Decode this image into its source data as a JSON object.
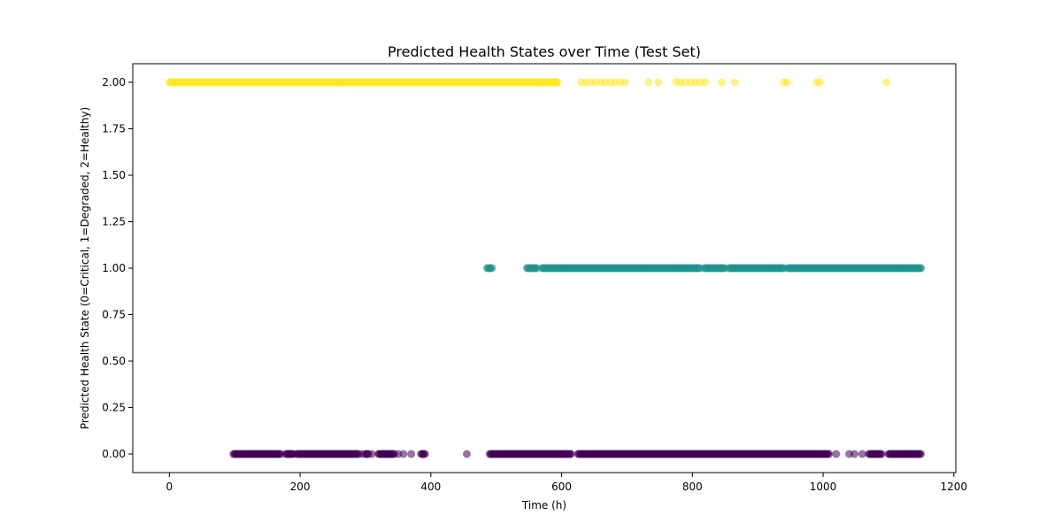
{
  "chart_data": {
    "type": "scatter",
    "title": "Predicted Health States over Time (Test Set)",
    "xlabel": "Time (h)",
    "ylabel": "Predicted Health State (0=Critical, 1=Degraded, 2=Healthy)",
    "xlim": [
      -56,
      1203
    ],
    "ylim": [
      -0.1,
      2.1
    ],
    "x_ticks": [
      0,
      200,
      400,
      600,
      800,
      1000,
      1200
    ],
    "x_tick_labels": [
      "0",
      "200",
      "400",
      "600",
      "800",
      "1000",
      "1200"
    ],
    "y_ticks": [
      0.0,
      0.25,
      0.5,
      0.75,
      1.0,
      1.25,
      1.5,
      1.75,
      2.0
    ],
    "y_tick_labels": [
      "0.00",
      "0.25",
      "0.50",
      "0.75",
      "1.00",
      "1.25",
      "1.50",
      "1.75",
      "2.00"
    ],
    "grid": false,
    "legend": "none",
    "colors": {
      "state_0": "#440154",
      "state_1": "#21918c",
      "state_2": "#fde725",
      "axes": "#000000",
      "background": "#ffffff"
    },
    "series": [
      {
        "state": 2,
        "color": "#fde725",
        "x_ranges": [
          [
            0,
            595
          ]
        ],
        "x": [
          630,
          637,
          645,
          652,
          660,
          667,
          675,
          682,
          690,
          697,
          733,
          748,
          775,
          782,
          790,
          797,
          805,
          812,
          820,
          845,
          865,
          940,
          945,
          990,
          995,
          1097
        ]
      },
      {
        "state": 1,
        "color": "#21918c",
        "x_ranges": [
          [
            486,
            494
          ],
          [
            547,
            562
          ],
          [
            570,
            812
          ],
          [
            818,
            850
          ],
          [
            856,
            940
          ],
          [
            946,
            1150
          ]
        ],
        "x": []
      },
      {
        "state": 0,
        "color": "#440154",
        "x_ranges": [
          [
            98,
            170
          ],
          [
            178,
            190
          ],
          [
            195,
            290
          ],
          [
            300,
            305
          ],
          [
            320,
            345
          ],
          [
            385,
            392
          ],
          [
            490,
            615
          ],
          [
            625,
            1010
          ],
          [
            1070,
            1090
          ],
          [
            1100,
            1150
          ]
        ],
        "x": [
          295,
          310,
          350,
          358,
          370,
          455,
          1020,
          1040,
          1048,
          1060
        ]
      }
    ]
  }
}
